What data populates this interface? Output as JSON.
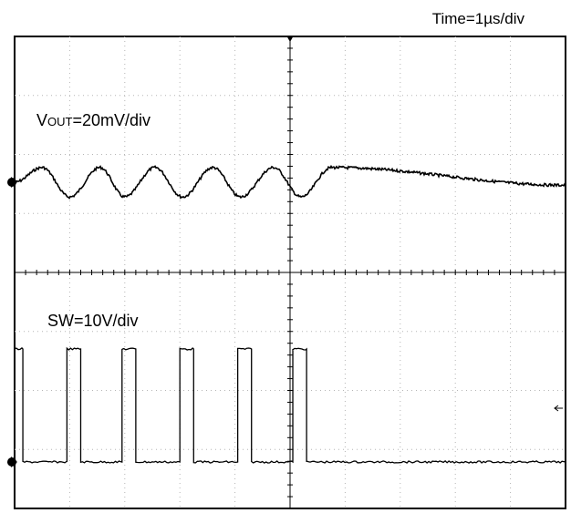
{
  "chart_data": {
    "type": "line",
    "title": "",
    "time_scale": "Time=1µs/div",
    "grid": true,
    "divisions": {
      "x": 10,
      "y": 8
    },
    "channels": [
      {
        "label_main": "V",
        "label_sub": "OUT",
        "label_rest": "=20mV/div",
        "volts_per_div": 0.02,
        "period_us": 1.05,
        "ripple_pp_div": 0.5,
        "peak_times_us": [
          0.5,
          1.55,
          2.55,
          3.6,
          4.7,
          5.75
        ],
        "valley_times_us": [
          1.0,
          2.0,
          3.05,
          4.1,
          5.2
        ]
      },
      {
        "label_full": "SW=10V/div",
        "volts_per_div": 10,
        "high_level_div": 1.5,
        "low_level_div": -1.0,
        "pulses_us": [
          [
            0,
            0.15
          ],
          [
            0.95,
            1.2
          ],
          [
            1.95,
            2.2
          ],
          [
            3.0,
            3.25
          ],
          [
            4.05,
            4.3
          ],
          [
            5.05,
            5.3
          ]
        ]
      }
    ]
  }
}
